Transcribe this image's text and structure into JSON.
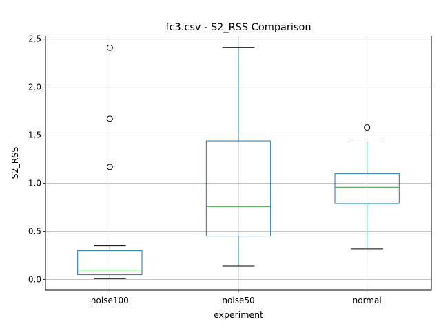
{
  "chart_data": {
    "type": "box",
    "title": "fc3.csv - S2_RSS Comparison",
    "xlabel": "experiment",
    "ylabel": "S2_RSS",
    "ylim": [
      -0.11,
      2.53
    ],
    "yticks": [
      0.0,
      0.5,
      1.0,
      1.5,
      2.0,
      2.5
    ],
    "ytick_labels": [
      "0.0",
      "0.5",
      "1.0",
      "1.5",
      "2.0",
      "2.5"
    ],
    "grid": true,
    "categories": [
      "noise100",
      "noise50",
      "normal"
    ],
    "boxes": [
      {
        "category": "noise100",
        "whisker_low": 0.01,
        "q1": 0.05,
        "median": 0.1,
        "q3": 0.3,
        "whisker_high": 0.35,
        "outliers": [
          1.17,
          1.67,
          2.41
        ]
      },
      {
        "category": "noise50",
        "whisker_low": 0.14,
        "q1": 0.45,
        "median": 0.76,
        "q3": 1.44,
        "whisker_high": 2.41,
        "outliers": []
      },
      {
        "category": "normal",
        "whisker_low": 0.32,
        "q1": 0.79,
        "median": 0.96,
        "q3": 1.1,
        "whisker_high": 1.43,
        "outliers": [
          1.58
        ]
      }
    ],
    "colors": {
      "box": "#1f77b4",
      "median": "#2ca02c",
      "whisker_cap": "#000000",
      "outlier": "#000000",
      "grid": "#b0b0b0"
    }
  }
}
